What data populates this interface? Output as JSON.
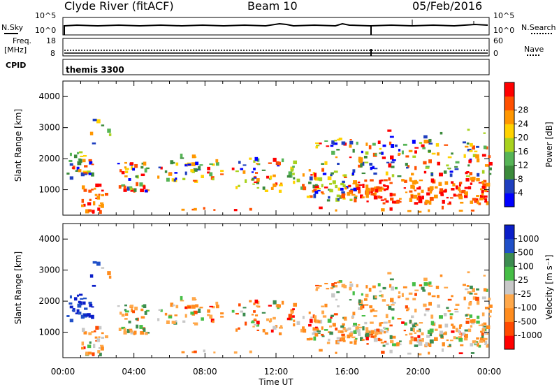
{
  "header": {
    "station": "Clyde River (fitACF)",
    "beam": "Beam 10",
    "date": "05/Feb/2016"
  },
  "top_panels": {
    "nsky_label": "N.Sky",
    "nsearch_label": "N.Search",
    "freq_label_line1": "Freq.",
    "freq_label_line2": "[MHz]",
    "nave_label": "Nave",
    "cpid_label": "CPID",
    "program_name": "themis 3300",
    "noise_ticks_left": [
      "10^5",
      "10^0"
    ],
    "noise_ticks_right": [
      "10^5",
      "10^0"
    ],
    "freq_ticks": [
      "18",
      "8"
    ],
    "nave_ticks": [
      "60",
      "0"
    ]
  },
  "colors": {
    "power_scale": [
      "#0000ff",
      "#1f3fbf",
      "#3b8a3b",
      "#56b456",
      "#a8d21e",
      "#ffd200",
      "#ff9600",
      "#ff5000",
      "#ff0000"
    ],
    "velocity_scale": [
      "#ff0000",
      "#ff4a00",
      "#ff8c1e",
      "#ffa84a",
      "#c8c8c8",
      "#46be46",
      "#3c8c50",
      "#2050c8",
      "#0a1ec8"
    ]
  },
  "chart_data": [
    {
      "type": "heatmap",
      "title": "Power",
      "ylabel": "Slant Range [km]",
      "colorbar_label": "Power [dB]",
      "colorbar_ticks": [
        "4",
        "8",
        "12",
        "16",
        "20",
        "24",
        "28"
      ],
      "y_ticks": [
        "1000",
        "2000",
        "3000",
        "4000"
      ],
      "ylim": [
        180,
        4500
      ],
      "x_ticks": [
        "00:00",
        "04:00",
        "08:00",
        "12:00",
        "16:00",
        "20:00",
        "00:00"
      ]
    },
    {
      "type": "heatmap",
      "title": "Velocity",
      "ylabel": "Slant Range [km]",
      "colorbar_label": "Velocity [m s⁻¹]",
      "colorbar_ticks": [
        "-1000",
        "-500",
        "-100",
        "-25",
        "25",
        "100",
        "500",
        "1000"
      ],
      "y_ticks": [
        "1000",
        "2000",
        "3000",
        "4000"
      ],
      "ylim": [
        180,
        4500
      ],
      "x_ticks": [
        "00:00",
        "04:00",
        "08:00",
        "12:00",
        "16:00",
        "20:00",
        "00:00"
      ],
      "xlabel": "Time UT"
    }
  ]
}
